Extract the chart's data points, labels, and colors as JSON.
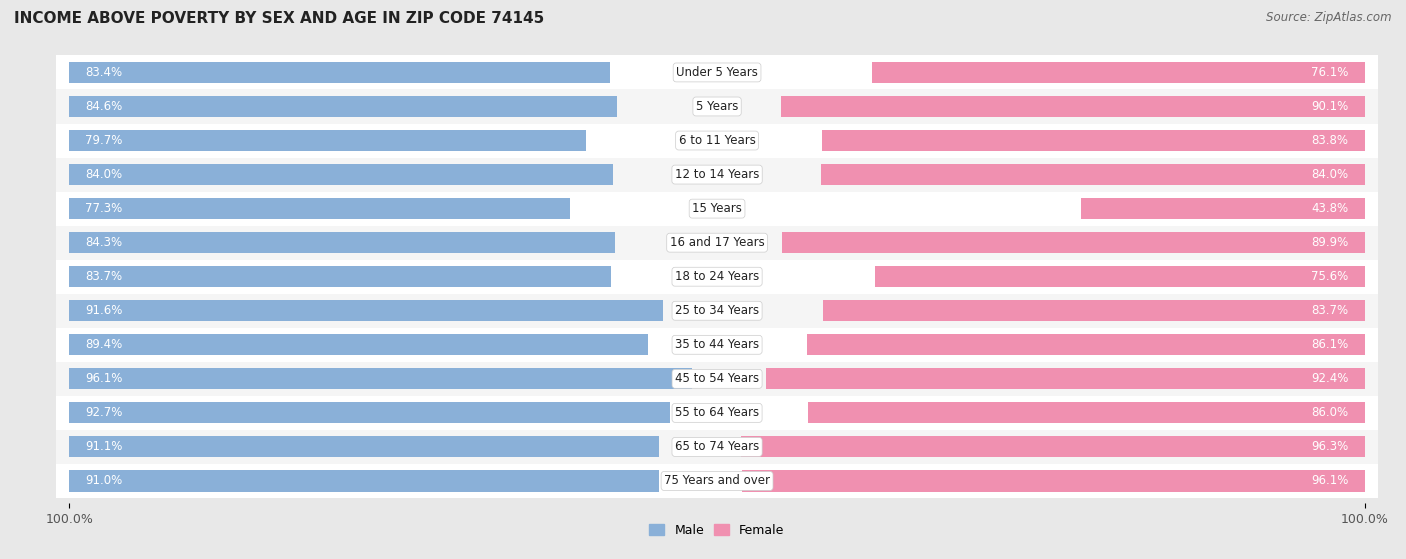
{
  "title": "INCOME ABOVE POVERTY BY SEX AND AGE IN ZIP CODE 74145",
  "source": "Source: ZipAtlas.com",
  "categories": [
    "Under 5 Years",
    "5 Years",
    "6 to 11 Years",
    "12 to 14 Years",
    "15 Years",
    "16 and 17 Years",
    "18 to 24 Years",
    "25 to 34 Years",
    "35 to 44 Years",
    "45 to 54 Years",
    "55 to 64 Years",
    "65 to 74 Years",
    "75 Years and over"
  ],
  "male_values": [
    83.4,
    84.6,
    79.7,
    84.0,
    77.3,
    84.3,
    83.7,
    91.6,
    89.4,
    96.1,
    92.7,
    91.1,
    91.0
  ],
  "female_values": [
    76.1,
    90.1,
    83.8,
    84.0,
    43.8,
    89.9,
    75.6,
    83.7,
    86.1,
    92.4,
    86.0,
    96.3,
    96.1
  ],
  "male_color": "#8ab0d8",
  "female_color": "#f090b0",
  "male_label": "Male",
  "female_label": "Female",
  "bg_color": "#e8e8e8",
  "row_bg_even": "#f5f5f5",
  "row_bg_odd": "#ffffff",
  "max_value": 100.0,
  "title_fontsize": 11,
  "label_fontsize": 8.5,
  "tick_fontsize": 9,
  "source_fontsize": 8.5
}
